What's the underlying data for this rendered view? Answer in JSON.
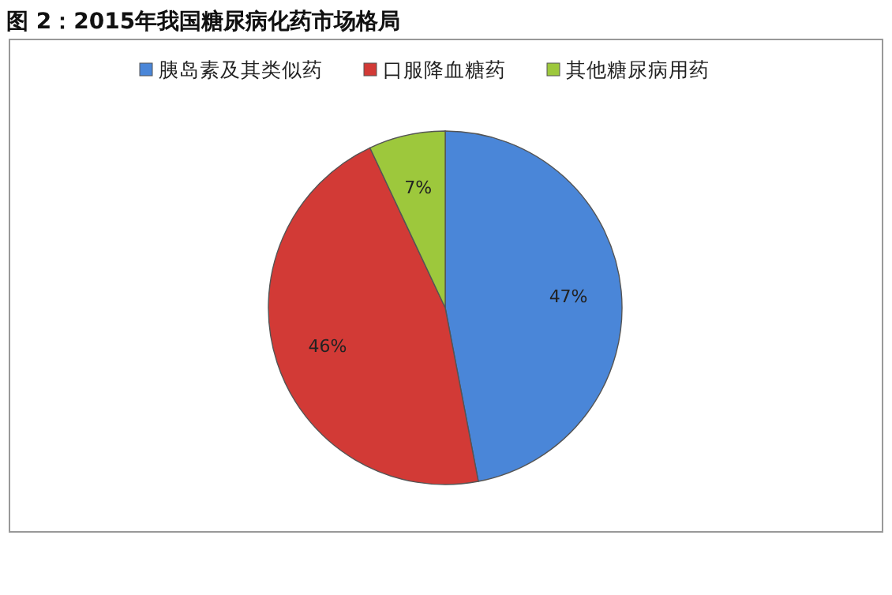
{
  "chart_data": {
    "type": "pie",
    "title": "图 2：2015年我国糖尿病化药市场格局",
    "categories": [
      "胰岛素及其类似药",
      "口服降血糖药",
      "其他糖尿病用药"
    ],
    "values": [
      47,
      46,
      7
    ],
    "colors": [
      "#4a86d8",
      "#d23a36",
      "#9dc83c"
    ],
    "value_labels": [
      "47%",
      "46%",
      "7%"
    ],
    "legend": "top"
  }
}
